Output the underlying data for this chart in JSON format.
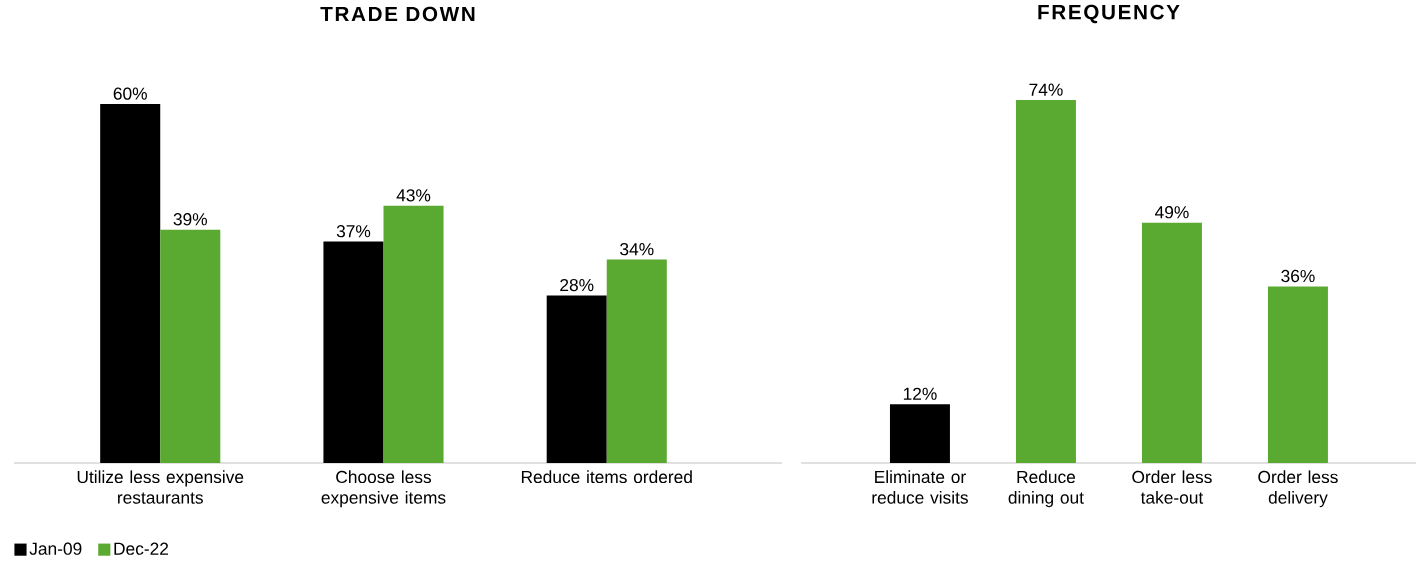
{
  "chart_data": [
    {
      "type": "bar",
      "title": "TRADE DOWN",
      "categories": [
        "Utilize less expensive restaurants",
        "Choose less expensive items",
        "Reduce items ordered"
      ],
      "series": [
        {
          "name": "Jan-09",
          "color": "#000000",
          "values": [
            60,
            37,
            28
          ],
          "value_labels": [
            "60%",
            "37%",
            "28%"
          ]
        },
        {
          "name": "Dec-22",
          "color": "#5aaa32",
          "values": [
            39,
            43,
            34
          ],
          "value_labels": [
            "39%",
            "43%",
            "34%"
          ]
        }
      ],
      "legend": "bottom left"
    },
    {
      "type": "bar",
      "title": "FREQUENCY",
      "categories": [
        "Eliminate or reduce visits",
        "Reduce dining out",
        "Order less take-out",
        "Order less delivery"
      ],
      "values": [
        12,
        74,
        49,
        36
      ],
      "colors": [
        "#000000",
        "#5aaa32",
        "#5aaa32",
        "#5aaa32"
      ],
      "value_labels": [
        "12%",
        "74%",
        "49%",
        "36%"
      ],
      "legend": false
    }
  ]
}
